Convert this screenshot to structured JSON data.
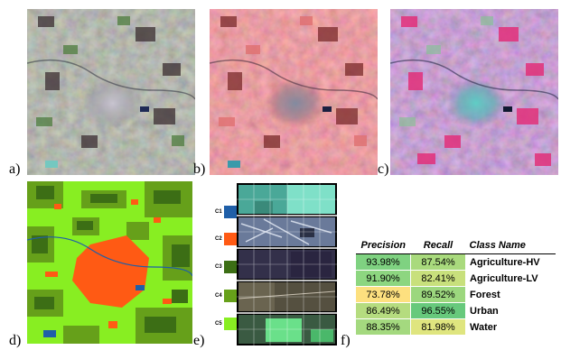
{
  "panel_labels": [
    "a)",
    "b)",
    "c)",
    "d)",
    "e)",
    "f)"
  ],
  "class_labels": [
    "C1",
    "C2",
    "C3",
    "C4",
    "C5"
  ],
  "class_colors": [
    "#1f5fa8",
    "#ff5a14",
    "#3c6e15",
    "#66a01a",
    "#88ee22"
  ],
  "table": {
    "headers": [
      "Precision",
      "Recall",
      "Class Name"
    ],
    "rows": [
      {
        "precision": "93.98%",
        "recall": "87.54%",
        "name": "Agriculture-HV",
        "pcolor": "#7fd281",
        "rcolor": "#a9da7d"
      },
      {
        "precision": "91.90%",
        "recall": "82.41%",
        "name": "Agriculture-LV",
        "pcolor": "#8dd680",
        "rcolor": "#c8e07c"
      },
      {
        "precision": "73.78%",
        "recall": "89.52%",
        "name": "Forest",
        "pcolor": "#fde07f",
        "rcolor": "#9cd77e"
      },
      {
        "precision": "86.49%",
        "recall": "96.55%",
        "name": "Urban",
        "pcolor": "#b5dc7f",
        "rcolor": "#67c97c"
      },
      {
        "precision": "88.35%",
        "recall": "81.98%",
        "name": "Water",
        "pcolor": "#a4d97f",
        "rcolor": "#dfe57f"
      }
    ]
  }
}
